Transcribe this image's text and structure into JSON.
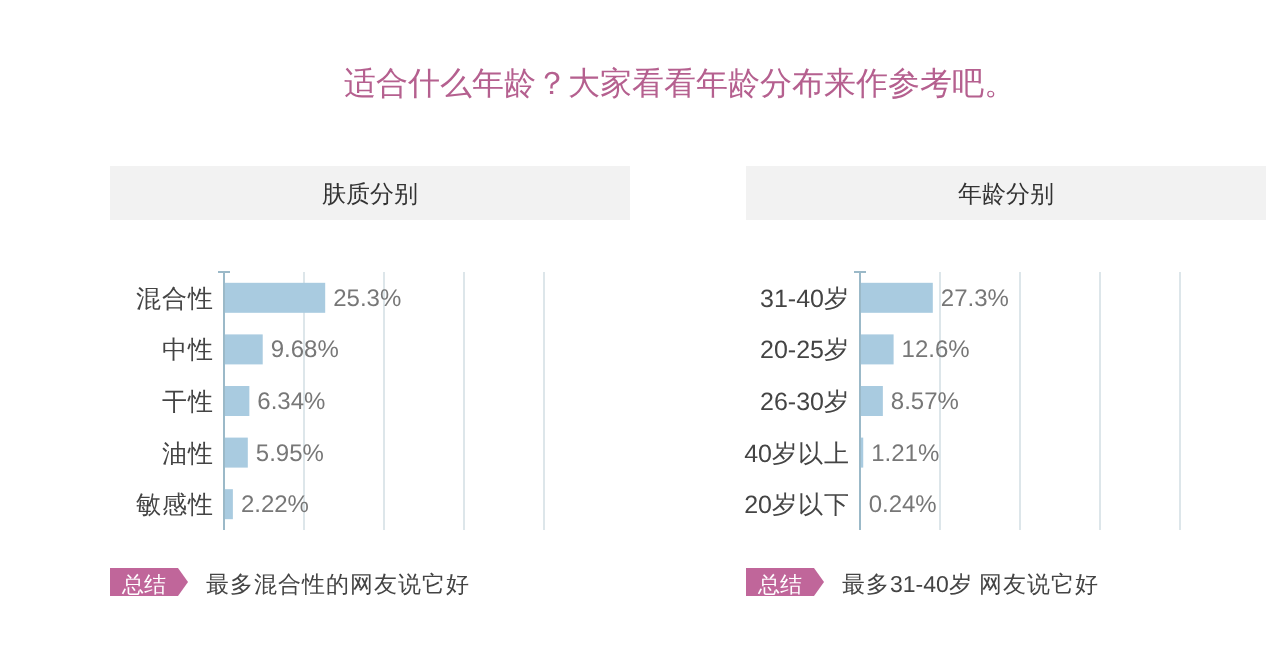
{
  "chart_data": [
    {
      "type": "other",
      "title": "适合什么年龄？大家看看年龄分布来作参考吧。"
    },
    {
      "type": "bar",
      "orientation": "horizontal",
      "title": "肤质分别",
      "categories": [
        "混合性",
        "中性",
        "干性",
        "油性",
        "敏感性"
      ],
      "values": [
        25.3,
        9.68,
        6.34,
        5.95,
        2.22
      ],
      "value_labels": [
        "25.3%",
        "9.68%",
        "6.34%",
        "5.95%",
        "2.22%"
      ],
      "color": "#a9cbe0",
      "xlim": [
        0,
        80
      ],
      "xticks": [
        {
          "value": 0,
          "label": null
        },
        {
          "value": 20,
          "label": null
        },
        {
          "value": 40,
          "label": null
        },
        {
          "value": 60,
          "label": null
        },
        {
          "value": 80,
          "label": null
        }
      ],
      "grid": "x",
      "tick_labels": "y",
      "annotations": [
        "总结",
        "最多混合性的网友说它好"
      ]
    },
    {
      "type": "bar",
      "orientation": "horizontal",
      "title": "年龄分别",
      "categories": [
        "31-40岁",
        "20-25岁",
        "26-30岁",
        "40岁以上",
        "20岁以下"
      ],
      "values": [
        27.3,
        12.6,
        8.57,
        1.21,
        0.24
      ],
      "value_labels": [
        "27.3%",
        "12.6%",
        "8.57%",
        "1.21%",
        "0.24%"
      ],
      "color": "#a9cbe0",
      "xlim": [
        0,
        120
      ],
      "xticks": [
        {
          "value": 0,
          "label": null
        },
        {
          "value": 30,
          "label": null
        },
        {
          "value": 60,
          "label": null
        },
        {
          "value": 90,
          "label": null
        },
        {
          "value": 120,
          "label": null
        }
      ],
      "grid": "x",
      "tick_labels": "y",
      "annotations": [
        "总结",
        "最多31-40岁 网友说它好"
      ]
    }
  ]
}
